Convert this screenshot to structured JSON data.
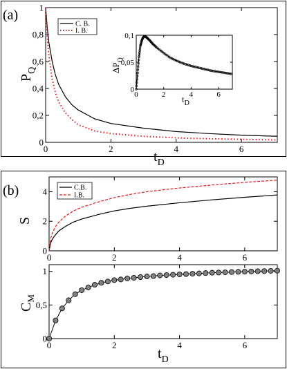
{
  "panel_a": {
    "label": "(a)",
    "ylabel": "P",
    "ylabel_sub": "Q",
    "xlabel": "t",
    "xlabel_sub": "D",
    "x_ticks": [
      "0",
      "2",
      "4",
      "6"
    ],
    "y_ticks": [
      "0",
      "0,2",
      "0,4",
      "0,6",
      "0,8",
      "1"
    ],
    "legend": [
      "C. B.",
      "I. B."
    ],
    "inset": {
      "ylabel": "ΔP",
      "ylabel_sub": "Q",
      "xlabel": "t",
      "xlabel_sub": "D",
      "x_ticks": [
        "0",
        "2",
        "4",
        "6"
      ],
      "y_ticks": [
        "0",
        "0,05",
        "0,1"
      ]
    }
  },
  "panel_b": {
    "label": "(b)",
    "top": {
      "ylabel": "S",
      "x_ticks": [
        "0",
        "2",
        "4",
        "6"
      ],
      "y_ticks": [
        "0",
        "2",
        "4"
      ],
      "legend": [
        "C.B.",
        "I.B."
      ]
    },
    "bottom": {
      "ylabel": "C",
      "ylabel_sub": "M",
      "xlabel": "t",
      "xlabel_sub": "D",
      "x_ticks": [
        "0",
        "2",
        "4",
        "6"
      ],
      "y_ticks": [
        "0",
        "0,5",
        "1"
      ]
    }
  },
  "colors": {
    "cb": "#000000",
    "ib": "#e41a1c",
    "marker": "#808080"
  },
  "chart_data": [
    {
      "type": "line",
      "panel": "(a)",
      "xlim": [
        0,
        7.1
      ],
      "ylim": [
        0,
        1
      ],
      "series": [
        {
          "name": "C. B.",
          "style": "solid",
          "color": "#000000",
          "x": [
            0,
            0.05,
            0.1,
            0.2,
            0.3,
            0.4,
            0.6,
            0.8,
            1,
            1.5,
            2,
            3,
            4,
            5,
            6,
            7.1
          ],
          "y": [
            1,
            0.85,
            0.74,
            0.6,
            0.5,
            0.43,
            0.34,
            0.28,
            0.24,
            0.175,
            0.14,
            0.105,
            0.08,
            0.065,
            0.053,
            0.045
          ]
        },
        {
          "name": "I. B.",
          "style": "dotted",
          "color": "#e41a1c",
          "x": [
            0,
            0.05,
            0.1,
            0.2,
            0.3,
            0.4,
            0.6,
            0.8,
            1,
            1.5,
            2,
            3,
            4,
            5,
            6,
            7.1
          ],
          "y": [
            1,
            0.78,
            0.64,
            0.47,
            0.37,
            0.3,
            0.22,
            0.17,
            0.13,
            0.085,
            0.065,
            0.045,
            0.033,
            0.027,
            0.022,
            0.018
          ]
        }
      ]
    },
    {
      "type": "line",
      "panel": "(a) inset",
      "xlim": [
        0,
        7
      ],
      "ylim": [
        0,
        0.1
      ],
      "series": [
        {
          "name": "",
          "style": "solid-markers",
          "color": "#000000",
          "x": [
            0,
            0.1,
            0.2,
            0.3,
            0.4,
            0.5,
            0.6,
            0.7,
            0.8,
            1,
            1.2,
            1.5,
            2,
            2.5,
            3,
            3.5,
            4,
            4.5,
            5,
            5.5,
            6,
            6.5,
            7
          ],
          "y": [
            0,
            0.03,
            0.06,
            0.08,
            0.09,
            0.096,
            0.098,
            0.097,
            0.095,
            0.09,
            0.084,
            0.077,
            0.067,
            0.058,
            0.052,
            0.047,
            0.043,
            0.04,
            0.037,
            0.034,
            0.032,
            0.03,
            0.028
          ]
        }
      ]
    },
    {
      "type": "line",
      "panel": "(b) top",
      "xlim": [
        0,
        7
      ],
      "ylim": [
        0,
        5
      ],
      "series": [
        {
          "name": "C.B.",
          "style": "solid",
          "color": "#000000",
          "x": [
            0,
            0.05,
            0.1,
            0.2,
            0.3,
            0.5,
            0.75,
            1,
            1.5,
            2,
            2.5,
            3,
            4,
            5,
            6,
            7
          ],
          "y": [
            0,
            0.55,
            0.8,
            1.1,
            1.35,
            1.65,
            1.95,
            2.15,
            2.45,
            2.7,
            2.88,
            3.02,
            3.25,
            3.45,
            3.62,
            3.78
          ]
        },
        {
          "name": "I.B.",
          "style": "dashed",
          "color": "#e41a1c",
          "x": [
            0,
            0.05,
            0.1,
            0.2,
            0.3,
            0.5,
            0.75,
            1,
            1.5,
            2,
            2.5,
            3,
            4,
            5,
            6,
            7
          ],
          "y": [
            0,
            0.85,
            1.2,
            1.65,
            1.95,
            2.35,
            2.7,
            2.95,
            3.3,
            3.6,
            3.82,
            4.0,
            4.25,
            4.45,
            4.63,
            4.78
          ]
        }
      ]
    },
    {
      "type": "scatter",
      "panel": "(b) bottom",
      "xlim": [
        0,
        7
      ],
      "ylim": [
        0,
        1.1
      ],
      "series": [
        {
          "name": "",
          "style": "line-markers",
          "color": "#000000",
          "x": [
            0,
            0.2,
            0.4,
            0.6,
            0.8,
            1,
            1.2,
            1.4,
            1.6,
            1.8,
            2,
            2.2,
            2.4,
            2.6,
            2.8,
            3,
            3.2,
            3.4,
            3.6,
            3.8,
            4,
            4.2,
            4.4,
            4.6,
            4.8,
            5,
            5.2,
            5.4,
            5.6,
            5.8,
            6,
            6.2,
            6.4,
            6.6,
            6.8,
            7
          ],
          "y": [
            0,
            0.27,
            0.45,
            0.57,
            0.66,
            0.72,
            0.76,
            0.8,
            0.83,
            0.85,
            0.87,
            0.88,
            0.895,
            0.905,
            0.915,
            0.925,
            0.93,
            0.94,
            0.945,
            0.95,
            0.955,
            0.96,
            0.965,
            0.97,
            0.975,
            0.98,
            0.983,
            0.986,
            0.99,
            0.993,
            0.996,
            0.999,
            1.002,
            1.005,
            1.008,
            1.01
          ]
        }
      ]
    }
  ]
}
